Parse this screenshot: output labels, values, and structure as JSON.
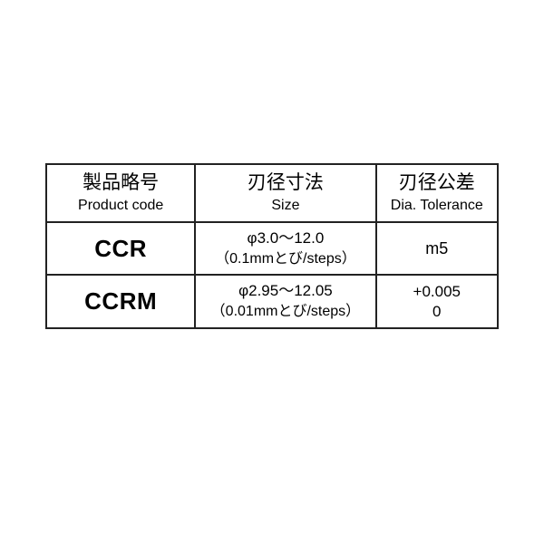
{
  "table": {
    "border_color": "#222222",
    "background_color": "#ffffff",
    "columns": [
      {
        "jp": "製品略号",
        "en": "Product code",
        "width_pct": 33
      },
      {
        "jp": "刃径寸法",
        "en": "Size",
        "width_pct": 40
      },
      {
        "jp": "刃径公差",
        "en": "Dia. Tolerance",
        "width_pct": 27
      }
    ],
    "rows": [
      {
        "code": "CCR",
        "size_line1": "φ3.0～12.0",
        "size_line2": "（0.1mmとび/steps）",
        "tol_line1": "m5",
        "tol_line2": ""
      },
      {
        "code": "CCRM",
        "size_line1": "φ2.95～12.05",
        "size_line2": "（0.01mmとび/steps）",
        "tol_line1": "+0.005",
        "tol_line2": "0"
      }
    ],
    "font": {
      "header_jp_pt": 21,
      "header_en_pt": 16,
      "code_pt": 26,
      "cell_pt": 17
    }
  }
}
